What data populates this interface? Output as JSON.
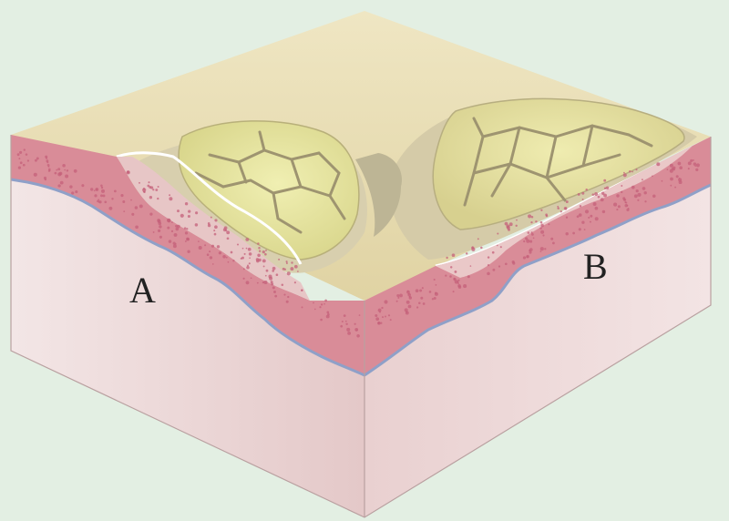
{
  "labels": {
    "a": "A",
    "b": "B"
  },
  "colors": {
    "background": "#e3efe3",
    "top_surface": "#eadfb3",
    "epidermis": "#d98c98",
    "dermis": "#e8c3c3",
    "basement_line": "#8fa0c8",
    "block_side_left": "#efdada",
    "block_side_right": "#ecd4d4",
    "lesion_yellow": "#e2e098",
    "lesion_gray": "#c9c4a6",
    "crack": "#a29a78",
    "stipple": "#c4607a"
  }
}
